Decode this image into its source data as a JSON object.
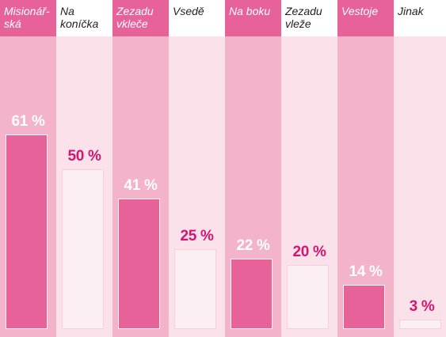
{
  "chart_data": {
    "type": "bar",
    "categories": [
      "Misionářská",
      "Na koníčka",
      "Zezadu vkleče",
      "Vsedě",
      "Na boku",
      "Zezadu vleže",
      "Vestoje",
      "Jinak"
    ],
    "category_lines": [
      [
        "Misionář-",
        "ská"
      ],
      [
        "Na koníčka"
      ],
      [
        "Zezadu",
        "vkleče"
      ],
      [
        "Vsedě"
      ],
      [
        "Na boku"
      ],
      [
        "Zezadu",
        "vleže"
      ],
      [
        "Vestoje"
      ],
      [
        "Jinak"
      ]
    ],
    "values": [
      61,
      50,
      41,
      25,
      22,
      20,
      14,
      3
    ],
    "value_labels": [
      "61 %",
      "50 %",
      "41 %",
      "25 %",
      "22 %",
      "20 %",
      "14 %",
      "3 %"
    ],
    "ylim": [
      0,
      61
    ],
    "grid": false,
    "colors": {
      "dark_column": "#f3b3cb",
      "light_column": "#fbe1ea",
      "accent": "#e8629a",
      "light_value_text": "#d4166f"
    }
  }
}
